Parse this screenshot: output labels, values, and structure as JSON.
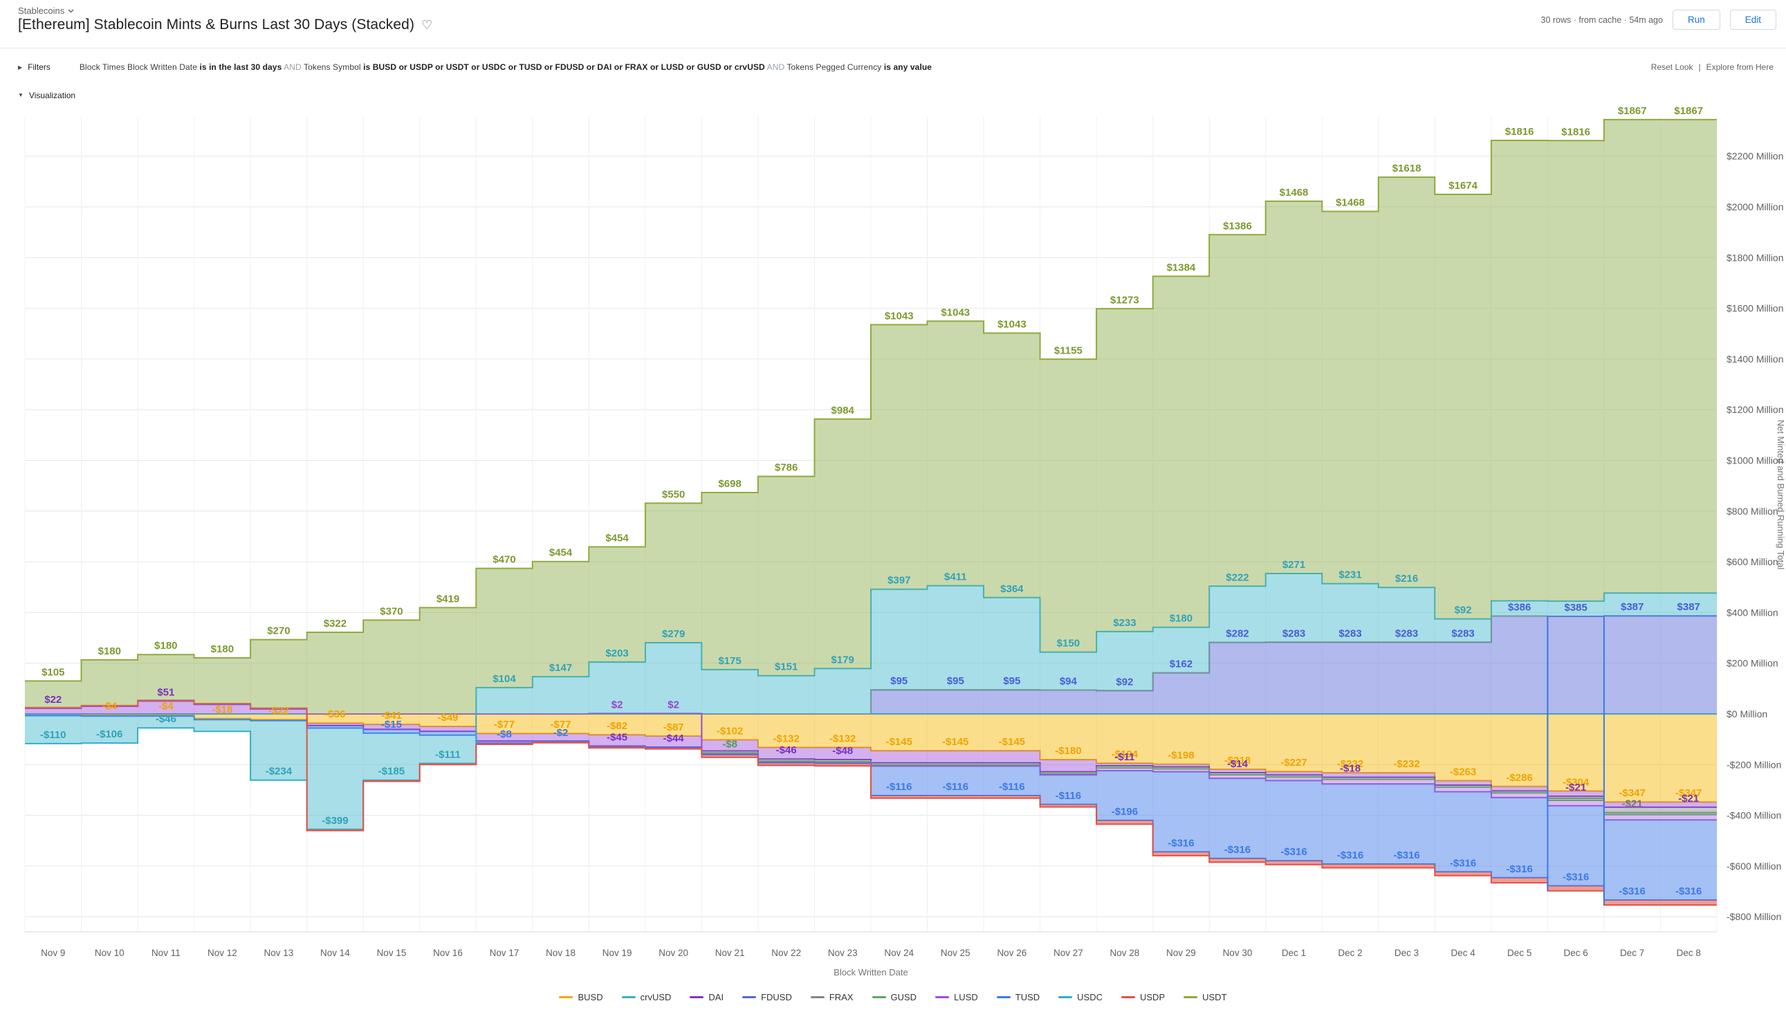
{
  "header": {
    "breadcrumb": "Stablecoins",
    "title": "[Ethereum] Stablecoin Mints & Burns Last 30 Days (Stacked)",
    "favorite_icon": "♡",
    "status": "30 rows · from cache · 54m ago",
    "run_label": "Run",
    "edit_label": "Edit"
  },
  "filters": {
    "expand_icon": "▶",
    "label": "Filters",
    "segments": [
      {
        "text": "Block Times Block Written Date ",
        "style": "normal"
      },
      {
        "text": "is in the last 30 days",
        "style": "bold"
      },
      {
        "text": " AND ",
        "style": "and"
      },
      {
        "text": "Tokens Symbol ",
        "style": "normal"
      },
      {
        "text": "is BUSD or USDP or USDT or USDC or TUSD or FDUSD or DAI or FRAX or LUSD or GUSD or crvUSD",
        "style": "bold"
      },
      {
        "text": " AND ",
        "style": "and"
      },
      {
        "text": "Tokens Pegged Currency ",
        "style": "normal"
      },
      {
        "text": "is any value",
        "style": "bold"
      }
    ],
    "reset_label": "Reset Look",
    "divider": "|",
    "explore_label": "Explore from Here"
  },
  "visualization": {
    "collapse_icon": "▼",
    "label": "Visualization"
  },
  "chart_data": {
    "type": "area",
    "stacked": true,
    "step": true,
    "x": [
      "Nov 9",
      "Nov 10",
      "Nov 11",
      "Nov 12",
      "Nov 13",
      "Nov 14",
      "Nov 15",
      "Nov 16",
      "Nov 17",
      "Nov 18",
      "Nov 19",
      "Nov 20",
      "Nov 21",
      "Nov 22",
      "Nov 23",
      "Nov 24",
      "Nov 25",
      "Nov 26",
      "Nov 27",
      "Nov 28",
      "Nov 29",
      "Nov 30",
      "Dec 1",
      "Dec 2",
      "Dec 3",
      "Dec 4",
      "Dec 5",
      "Dec 6",
      "Dec 7",
      "Dec 8"
    ],
    "xlabel": "Block Written Date",
    "ylabel": "Net Minted and Burned Running Total",
    "ylim": [
      -850,
      2350
    ],
    "yticks": [
      -800,
      -600,
      -400,
      -200,
      0,
      200,
      400,
      600,
      800,
      1000,
      1200,
      1400,
      1600,
      1800,
      2000,
      2200
    ],
    "ytick_suffix": " Million",
    "grid": true,
    "legend_position": "bottom",
    "series": [
      {
        "name": "BUSD",
        "color": "#F2A600",
        "label_color": "#EFA400",
        "fill": "rgba(247,181,0,0.45)",
        "values": [
          -2,
          -4,
          -4,
          -18,
          -22,
          -36,
          -41,
          -49,
          -77,
          -77,
          -82,
          -87,
          -102,
          -132,
          -132,
          -145,
          -145,
          -145,
          -180,
          -194,
          -198,
          -218,
          -227,
          -232,
          -232,
          -263,
          -286,
          -304,
          -347,
          -347
        ],
        "label_days": [
          1,
          2,
          3,
          4,
          5,
          6,
          7,
          8,
          9,
          10,
          11,
          12,
          13,
          14,
          15,
          16,
          17,
          18,
          19,
          20,
          21,
          22,
          23,
          24,
          25,
          26,
          27,
          28,
          29
        ]
      },
      {
        "name": "crvUSD",
        "color": "#3CAFC0",
        "label_color": "#3CAFC0",
        "fill": "rgba(60,175,192,0.4)",
        "values": [
          0,
          0,
          0,
          0,
          0,
          0,
          0,
          0,
          0,
          0,
          0,
          0,
          0,
          0,
          0,
          0,
          0,
          0,
          0,
          0,
          0,
          0,
          0,
          0,
          0,
          0,
          0,
          0,
          0,
          0
        ],
        "label_days": []
      },
      {
        "name": "DAI",
        "color": "#8430CE",
        "label_color": "#7B2FBF",
        "fill": "rgba(160,80,220,0.45)",
        "values": [
          22,
          30,
          51,
          38,
          20,
          -10,
          -20,
          -20,
          -30,
          -30,
          -45,
          -44,
          -44,
          -46,
          -48,
          -48,
          -48,
          -48,
          -48,
          -11,
          -11,
          -14,
          -14,
          -18,
          -18,
          -18,
          -18,
          -21,
          -21,
          -21
        ],
        "label_days": [
          0,
          2,
          10,
          11,
          13,
          14,
          19,
          21,
          23,
          27,
          29
        ]
      },
      {
        "name": "FDUSD",
        "color": "#5566D6",
        "label_color": "#4A5BD6",
        "fill": "rgba(100,115,220,0.5)",
        "values": [
          0,
          0,
          0,
          0,
          0,
          0,
          0,
          0,
          0,
          0,
          0,
          0,
          0,
          0,
          0,
          95,
          95,
          95,
          94,
          92,
          162,
          282,
          283,
          283,
          283,
          283,
          386,
          385,
          387,
          387
        ],
        "label_days": [
          15,
          16,
          17,
          18,
          19,
          20,
          21,
          22,
          23,
          24,
          25,
          26,
          27,
          28,
          29
        ]
      },
      {
        "name": "FRAX",
        "color": "#83878C",
        "label_color": "#73777C",
        "fill": "rgba(140,145,150,0.5)",
        "values": [
          0,
          0,
          0,
          0,
          0,
          0,
          0,
          0,
          0,
          0,
          0,
          0,
          0,
          0,
          0,
          0,
          0,
          0,
          0,
          0,
          0,
          0,
          0,
          0,
          0,
          0,
          0,
          -8,
          -21,
          -21
        ],
        "label_days": [
          28
        ]
      },
      {
        "name": "GUSD",
        "color": "#5BA75F",
        "label_color": "#4E9D52",
        "fill": "rgba(91,167,95,0.5)",
        "values": [
          0,
          0,
          0,
          0,
          0,
          0,
          0,
          0,
          0,
          0,
          0,
          0,
          -8,
          -8,
          -8,
          -8,
          -8,
          -8,
          -8,
          -8,
          -8,
          -8,
          -8,
          -8,
          -8,
          -8,
          -8,
          -8,
          -8,
          -8
        ],
        "label_days": [
          12
        ]
      },
      {
        "name": "LUSD",
        "color": "#A14CD9",
        "label_color": "#9742D0",
        "fill": "rgba(170,110,225,0.45)",
        "values": [
          0,
          0,
          0,
          0,
          0,
          0,
          0,
          0,
          0,
          0,
          2,
          2,
          -5,
          -5,
          -5,
          -5,
          -5,
          -5,
          -5,
          -11,
          -11,
          -14,
          -14,
          -18,
          -18,
          -18,
          -18,
          -21,
          -21,
          -21
        ],
        "label_days": [
          10,
          11
        ]
      },
      {
        "name": "TUSD",
        "color": "#3D79E8",
        "label_color": "#3D79E8",
        "fill": "rgba(90,140,235,0.55)",
        "values": [
          -5,
          -5,
          -5,
          -5,
          -5,
          -10,
          -15,
          -15,
          -8,
          -2,
          -2,
          -2,
          -2,
          -2,
          -2,
          -116,
          -116,
          -116,
          -116,
          -196,
          -316,
          -316,
          -316,
          -316,
          -316,
          -316,
          -316,
          -316,
          -316,
          -316
        ],
        "label_days": [
          6,
          8,
          9,
          15,
          16,
          17,
          18,
          19,
          20,
          21,
          22,
          23,
          24,
          25,
          26,
          27,
          28,
          29
        ]
      },
      {
        "name": "USDC",
        "color": "#31AFC6",
        "label_color": "#2FA2B9",
        "fill": "rgba(80,190,210,0.5)",
        "values": [
          -110,
          -106,
          -46,
          -46,
          -234,
          -399,
          -185,
          -111,
          104,
          147,
          203,
          279,
          175,
          151,
          179,
          397,
          411,
          364,
          150,
          233,
          180,
          222,
          271,
          231,
          216,
          92,
          60,
          60,
          90,
          90
        ],
        "label_days": [
          0,
          1,
          2,
          4,
          5,
          6,
          7,
          8,
          9,
          10,
          11,
          12,
          13,
          14,
          15,
          16,
          17,
          18,
          19,
          20,
          21,
          22,
          23,
          24,
          25
        ]
      },
      {
        "name": "USDP",
        "color": "#E45044",
        "label_color": "#E45044",
        "fill": "rgba(230,90,80,0.6)",
        "values": [
          3,
          3,
          3,
          3,
          3,
          -5,
          -5,
          -5,
          -5,
          -5,
          -5,
          -5,
          -10,
          -10,
          -10,
          -10,
          -10,
          -10,
          -10,
          -15,
          -15,
          -15,
          -15,
          -15,
          -15,
          -15,
          -20,
          -20,
          -20,
          -20
        ],
        "label_days": []
      },
      {
        "name": "USDT",
        "color": "#8FAA3C",
        "label_color": "#7C9A2F",
        "fill": "rgba(150,180,90,0.5)",
        "values": [
          105,
          180,
          180,
          180,
          270,
          322,
          370,
          419,
          470,
          454,
          454,
          550,
          698,
          786,
          984,
          1043,
          1043,
          1043,
          1155,
          1273,
          1384,
          1386,
          1468,
          1468,
          1618,
          1674,
          1816,
          1816,
          1867,
          1867
        ],
        "label_days": [
          0,
          1,
          2,
          3,
          4,
          5,
          6,
          7,
          8,
          9,
          10,
          11,
          12,
          13,
          14,
          15,
          16,
          17,
          18,
          19,
          20,
          21,
          22,
          23,
          24,
          25,
          26,
          27,
          28,
          29
        ]
      }
    ],
    "riser_lines": [
      {
        "boundary": 27,
        "top": 386,
        "bottom": -698,
        "color": "#3D79E8"
      },
      {
        "boundary": 28,
        "top": 386,
        "bottom": -754,
        "color": "#3D79E8"
      }
    ]
  }
}
